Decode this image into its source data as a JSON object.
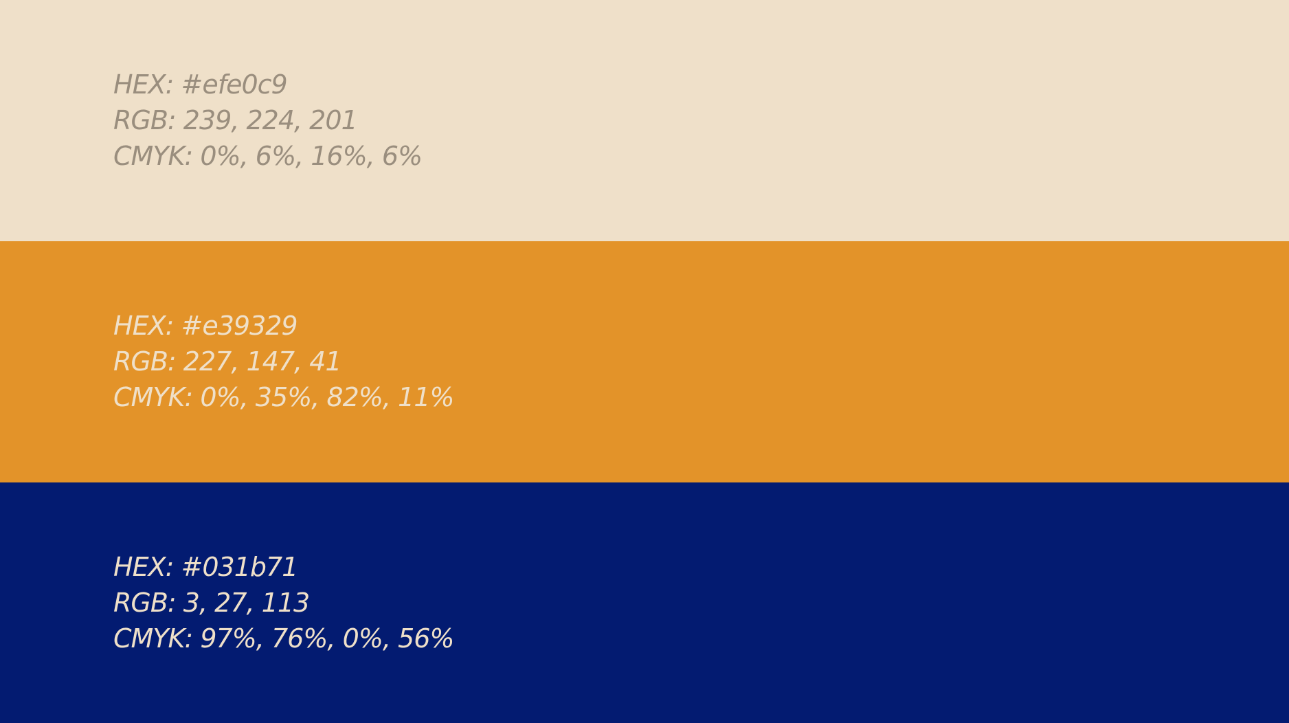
{
  "swatches": [
    {
      "background": "#efe0c9",
      "text_color": "#9a8e7e",
      "hex_line": "HEX: #efe0c9",
      "rgb_line": "RGB: 239, 224, 201",
      "cmyk_line": "CMYK: 0%, 6%, 16%, 6%"
    },
    {
      "background": "#e39329",
      "text_color": "#efe0c9",
      "hex_line": "HEX: #e39329",
      "rgb_line": "RGB: 227, 147, 41",
      "cmyk_line": "CMYK: 0%, 35%, 82%, 11%"
    },
    {
      "background": "#031b71",
      "text_color": "#efe0c9",
      "hex_line": "HEX: #031b71",
      "rgb_line": "RGB: 3, 27, 113",
      "cmyk_line": "CMYK: 97%, 76%, 0%, 56%"
    }
  ]
}
